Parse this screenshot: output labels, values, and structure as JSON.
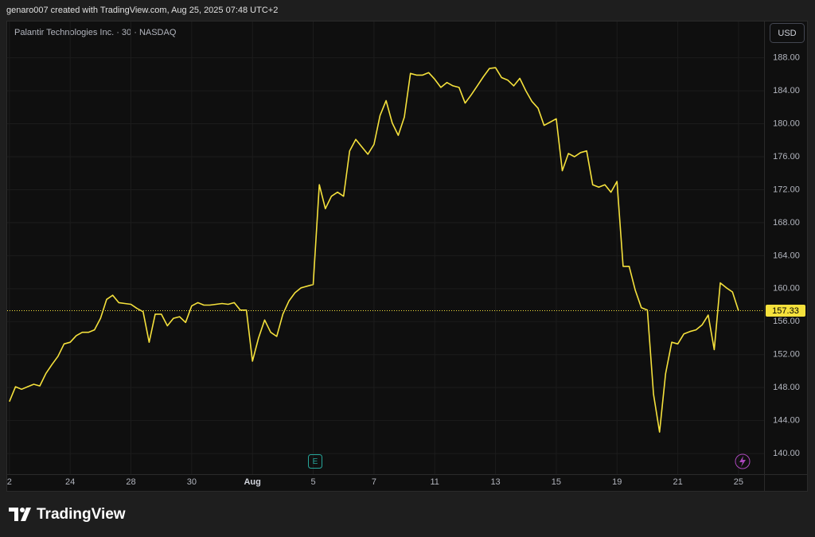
{
  "header": "genaro007 created with TradingView.com, Aug 25, 2025 07:48 UTC+2",
  "branding": "TradingView",
  "chart_data": {
    "type": "line",
    "title": "Palantir Technologies Inc. · 30 · NASDAQ",
    "currency": "USD",
    "earnings_marker": "E",
    "grid": true,
    "series": [
      {
        "color": "#f5e13c",
        "values": [
          146.3,
          148.1,
          147.8,
          148.1,
          148.4,
          148.2,
          149.7,
          150.8,
          151.8,
          153.3,
          153.5,
          154.3,
          154.7,
          154.7,
          155.0,
          156.4,
          158.7,
          159.2,
          158.3,
          158.2,
          158.1,
          157.6,
          157.2,
          153.5,
          156.9,
          156.9,
          155.5,
          156.4,
          156.6,
          155.9,
          157.9,
          158.3,
          158.0,
          158.0,
          158.1,
          158.2,
          158.1,
          158.3,
          157.4,
          157.4,
          151.2,
          154.0,
          156.2,
          154.7,
          154.2,
          156.9,
          158.5,
          159.5,
          160.1,
          160.3,
          160.5,
          172.6,
          169.7,
          171.2,
          171.7,
          171.2,
          176.7,
          178.1,
          177.2,
          176.3,
          177.5,
          181.0,
          182.8,
          180.1,
          178.6,
          180.8,
          186.1,
          185.9,
          185.9,
          186.2,
          185.4,
          184.4,
          185.0,
          184.6,
          184.4,
          182.5,
          183.5,
          184.6,
          185.7,
          186.7,
          186.8,
          185.6,
          185.3,
          184.6,
          185.5,
          184.0,
          182.7,
          181.9,
          179.8,
          180.2,
          180.6,
          174.3,
          176.4,
          176.0,
          176.5,
          176.7,
          172.6,
          172.3,
          172.6,
          171.7,
          173.0,
          162.7,
          162.7,
          159.8,
          157.7,
          157.4,
          147.2,
          142.6,
          149.7,
          153.5,
          153.3,
          154.5,
          154.8,
          155.0,
          155.6,
          156.8,
          152.6,
          160.7,
          160.1,
          159.6,
          157.33
        ]
      }
    ],
    "xlim": [
      -0.5,
      124.2
    ],
    "xticks": [
      {
        "value": 0,
        "label": "2"
      },
      {
        "value": 10,
        "label": "24"
      },
      {
        "value": 20,
        "label": "28"
      },
      {
        "value": 30,
        "label": "30"
      },
      {
        "value": 40,
        "label": "Aug"
      },
      {
        "value": 50,
        "label": "5"
      },
      {
        "value": 60,
        "label": "7"
      },
      {
        "value": 70,
        "label": "11"
      },
      {
        "value": 80,
        "label": "13"
      },
      {
        "value": 90,
        "label": "15"
      },
      {
        "value": 100,
        "label": "19"
      },
      {
        "value": 110,
        "label": "21"
      },
      {
        "value": 120,
        "label": "25"
      }
    ],
    "ylim": [
      137.5,
      192.5
    ],
    "yticks": [
      {
        "value": 140,
        "label": "140.00"
      },
      {
        "value": 144,
        "label": "144.00"
      },
      {
        "value": 148,
        "label": "148.00"
      },
      {
        "value": 152,
        "label": "152.00"
      },
      {
        "value": 156,
        "label": "156.00"
      },
      {
        "value": 160,
        "label": "160.00"
      },
      {
        "value": 164,
        "label": "164.00"
      },
      {
        "value": 168,
        "label": "168.00"
      },
      {
        "value": 172,
        "label": "172.00"
      },
      {
        "value": 176,
        "label": "176.00"
      },
      {
        "value": 180,
        "label": "180.00"
      },
      {
        "value": 184,
        "label": "184.00"
      },
      {
        "value": 188,
        "label": "188.00"
      }
    ]
  }
}
